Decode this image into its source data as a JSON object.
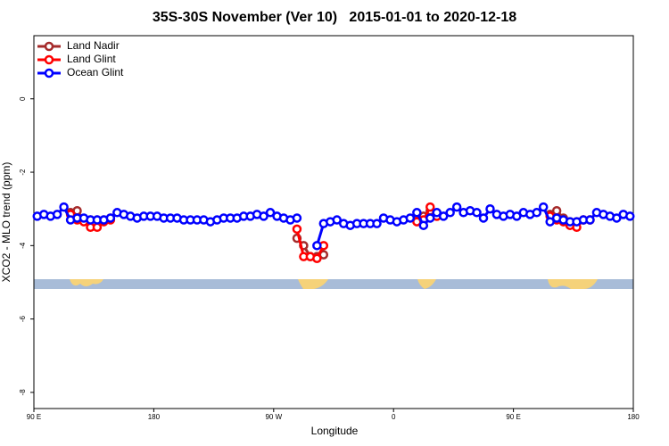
{
  "chart_data": {
    "type": "line",
    "title": "35S-30S November (Ver 10)   2015-01-01 to 2020-12-18",
    "xlabel": "Longitude",
    "ylabel": "XCO2 - MLO trend (ppm)",
    "xlim": [
      90,
      540
    ],
    "ylim": [
      -8.44,
      1.72
    ],
    "xticks": [
      {
        "value": 90,
        "label": "90 E"
      },
      {
        "value": 180,
        "label": "180"
      },
      {
        "value": 270,
        "label": "90 W"
      },
      {
        "value": 360,
        "label": "0"
      },
      {
        "value": 450,
        "label": "90 E"
      },
      {
        "value": 540,
        "label": "180"
      }
    ],
    "yticks": [
      -8,
      -6,
      -4,
      -2,
      0
    ],
    "legend": "top-left",
    "x": [
      92.5,
      97.5,
      102.5,
      107.5,
      112.5,
      117.5,
      122.5,
      127.5,
      132.5,
      137.5,
      142.5,
      147.5,
      152.5,
      157.5,
      162.5,
      167.5,
      172.5,
      177.5,
      182.5,
      187.5,
      192.5,
      197.5,
      202.5,
      207.5,
      212.5,
      217.5,
      222.5,
      227.5,
      232.5,
      237.5,
      242.5,
      247.5,
      252.5,
      257.5,
      262.5,
      267.5,
      272.5,
      277.5,
      282.5,
      287.5,
      292.5,
      297.5,
      302.5,
      307.5,
      312.5,
      317.5,
      322.5,
      327.5,
      332.5,
      337.5,
      342.5,
      347.5,
      352.5,
      357.5,
      362.5,
      367.5,
      372.5,
      377.5,
      382.5,
      387.5,
      392.5,
      397.5,
      402.5,
      407.5,
      412.5,
      417.5,
      422.5,
      427.5,
      432.5,
      437.5,
      442.5,
      447.5,
      452.5,
      457.5,
      462.5,
      467.5,
      472.5,
      477.5,
      482.5,
      487.5,
      492.5,
      497.5,
      502.5,
      507.5,
      512.5,
      517.5,
      522.5,
      527.5,
      532.5,
      537.5
    ],
    "series": [
      {
        "name": "Land Nadir",
        "color": "#a52a2a",
        "values": [
          null,
          null,
          null,
          null,
          null,
          -3.1,
          -3.05,
          -3.3,
          -3.3,
          -3.3,
          -3.3,
          -3.25,
          null,
          null,
          null,
          null,
          null,
          null,
          null,
          null,
          null,
          null,
          null,
          null,
          null,
          null,
          null,
          null,
          null,
          null,
          null,
          null,
          null,
          null,
          null,
          null,
          null,
          null,
          null,
          -3.8,
          -4.0,
          -4.3,
          -4.3,
          -4.25,
          null,
          null,
          null,
          null,
          null,
          null,
          null,
          null,
          null,
          null,
          null,
          null,
          null,
          -3.3,
          -3.2,
          -3.05,
          -3.2,
          null,
          null,
          null,
          null,
          null,
          null,
          null,
          null,
          null,
          null,
          null,
          null,
          null,
          null,
          null,
          null,
          -3.15,
          -3.05,
          -3.25,
          -3.35,
          -3.35,
          -3.3,
          -3.3,
          null,
          null,
          null,
          null,
          null,
          null
        ]
      },
      {
        "name": "Land Glint",
        "color": "#ff0000",
        "values": [
          null,
          null,
          null,
          null,
          null,
          -3.15,
          -3.3,
          -3.35,
          -3.5,
          -3.5,
          -3.35,
          -3.3,
          null,
          null,
          null,
          null,
          null,
          null,
          null,
          null,
          null,
          null,
          null,
          null,
          null,
          null,
          null,
          null,
          null,
          null,
          null,
          null,
          null,
          null,
          null,
          null,
          null,
          null,
          null,
          -3.55,
          -4.3,
          -4.3,
          -4.35,
          -4.0,
          null,
          null,
          null,
          null,
          null,
          null,
          null,
          null,
          null,
          null,
          null,
          null,
          null,
          -3.35,
          -3.3,
          -2.95,
          -3.2,
          null,
          null,
          null,
          null,
          null,
          null,
          null,
          null,
          null,
          null,
          null,
          null,
          null,
          null,
          null,
          null,
          -3.2,
          -3.3,
          -3.35,
          -3.45,
          -3.5,
          -3.3,
          -3.3,
          null,
          null,
          null,
          null,
          null,
          null
        ]
      },
      {
        "name": "Ocean Glint",
        "color": "#0000ff",
        "values": [
          -3.2,
          -3.15,
          -3.2,
          -3.15,
          -2.95,
          -3.3,
          -3.25,
          -3.25,
          -3.3,
          -3.3,
          -3.3,
          -3.25,
          -3.1,
          -3.15,
          -3.2,
          -3.25,
          -3.2,
          -3.2,
          -3.2,
          -3.25,
          -3.25,
          -3.25,
          -3.3,
          -3.3,
          -3.3,
          -3.3,
          -3.35,
          -3.3,
          -3.25,
          -3.25,
          -3.25,
          -3.2,
          -3.2,
          -3.15,
          -3.2,
          -3.1,
          -3.2,
          -3.25,
          -3.3,
          -3.25,
          null,
          null,
          -4.0,
          -3.4,
          -3.35,
          -3.3,
          -3.4,
          -3.45,
          -3.4,
          -3.4,
          -3.4,
          -3.4,
          -3.25,
          -3.3,
          -3.35,
          -3.3,
          -3.25,
          -3.1,
          -3.45,
          -3.25,
          -3.1,
          -3.2,
          -3.1,
          -2.95,
          -3.1,
          -3.05,
          -3.1,
          -3.25,
          -3.0,
          -3.15,
          -3.2,
          -3.15,
          -3.2,
          -3.1,
          -3.15,
          -3.1,
          -2.95,
          -3.35,
          -3.25,
          -3.3,
          -3.35,
          -3.35,
          -3.3,
          -3.3,
          -3.1,
          -3.15,
          -3.2,
          -3.25,
          -3.15,
          -3.2
        ]
      }
    ]
  }
}
